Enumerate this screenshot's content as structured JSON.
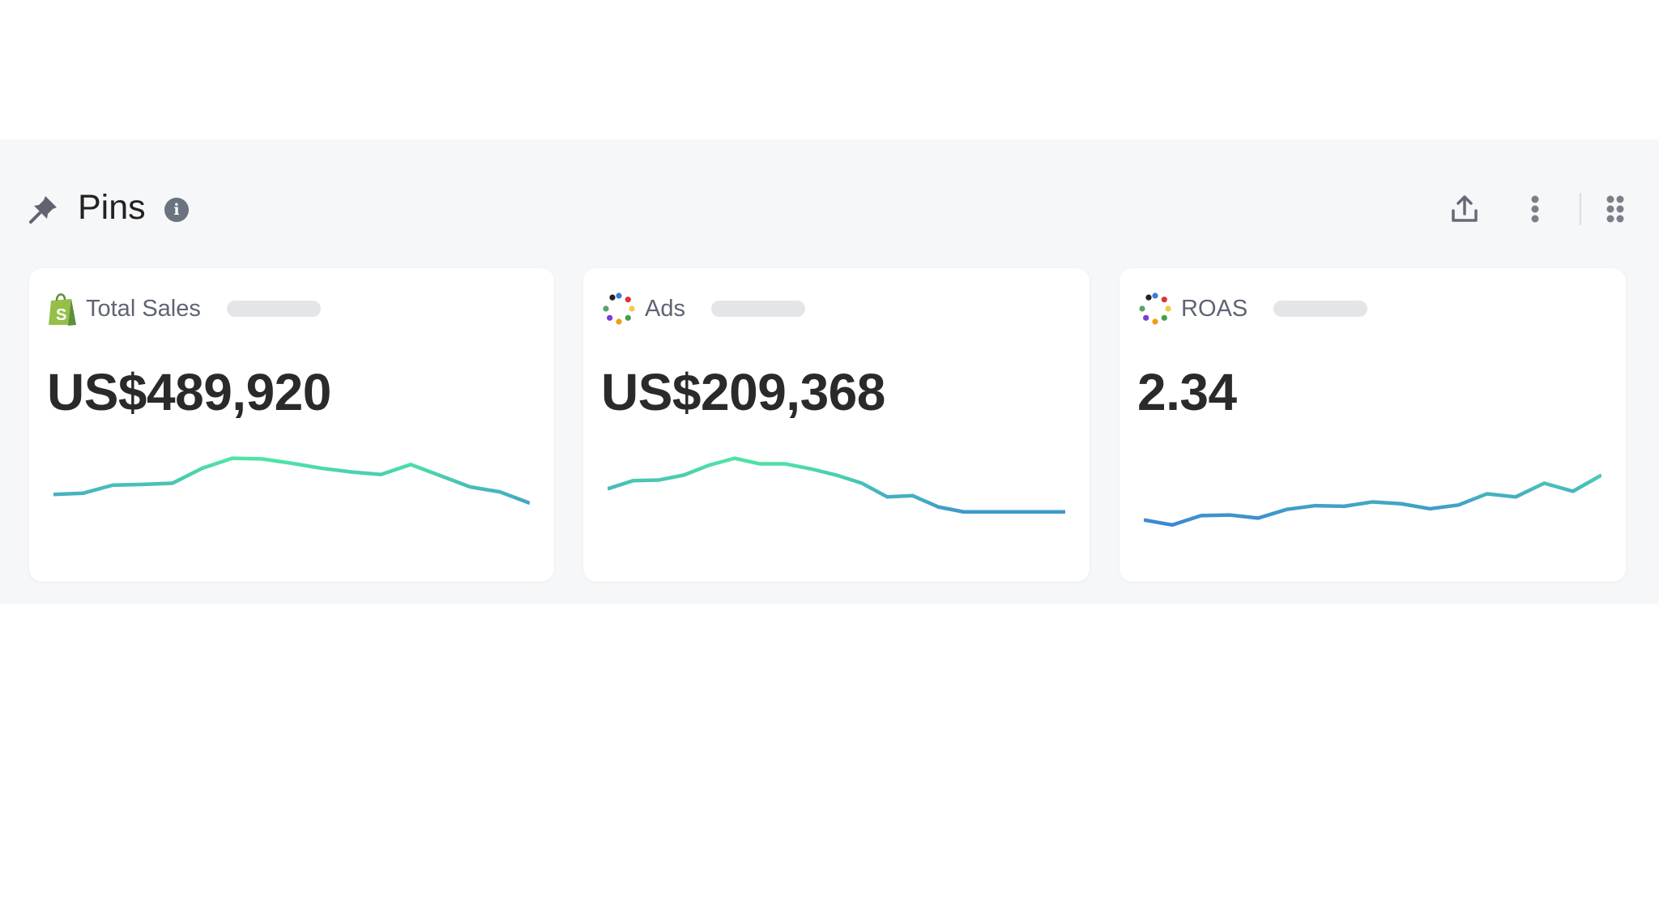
{
  "section": {
    "title": "Pins",
    "info_icon": "info-icon",
    "pin_icon": "pin-icon"
  },
  "toolbar": {
    "icons": [
      "upload-icon",
      "more-vertical-icon",
      "drag-grid-icon"
    ]
  },
  "colors": {
    "background": "#f6f7f9",
    "card": "#ffffff",
    "line_low": "#3b7fd8",
    "line_high": "#4fe3a5",
    "title": "#222222",
    "label": "#5e6472"
  },
  "cards": [
    {
      "label": "Total Sales",
      "icon": "shopify-icon",
      "value": "US$489,920",
      "sparkline": [
        66,
        68,
        81,
        82,
        84,
        108,
        124,
        123,
        116,
        108,
        102,
        98,
        114,
        96,
        78,
        70,
        52
      ]
    },
    {
      "label": "Ads",
      "icon": "multicolor-dots-icon",
      "value": "US$209,368",
      "sparkline": [
        75,
        88,
        89,
        97,
        113,
        124,
        115,
        115,
        107,
        97,
        84,
        62,
        64,
        46,
        38,
        38,
        38,
        38,
        38
      ]
    },
    {
      "label": "ROAS",
      "icon": "multicolor-dots-icon",
      "value": "2.34",
      "sparkline": [
        25,
        17,
        32,
        33,
        28,
        42,
        48,
        47,
        54,
        51,
        43,
        49,
        67,
        62,
        84,
        71,
        97
      ]
    }
  ]
}
